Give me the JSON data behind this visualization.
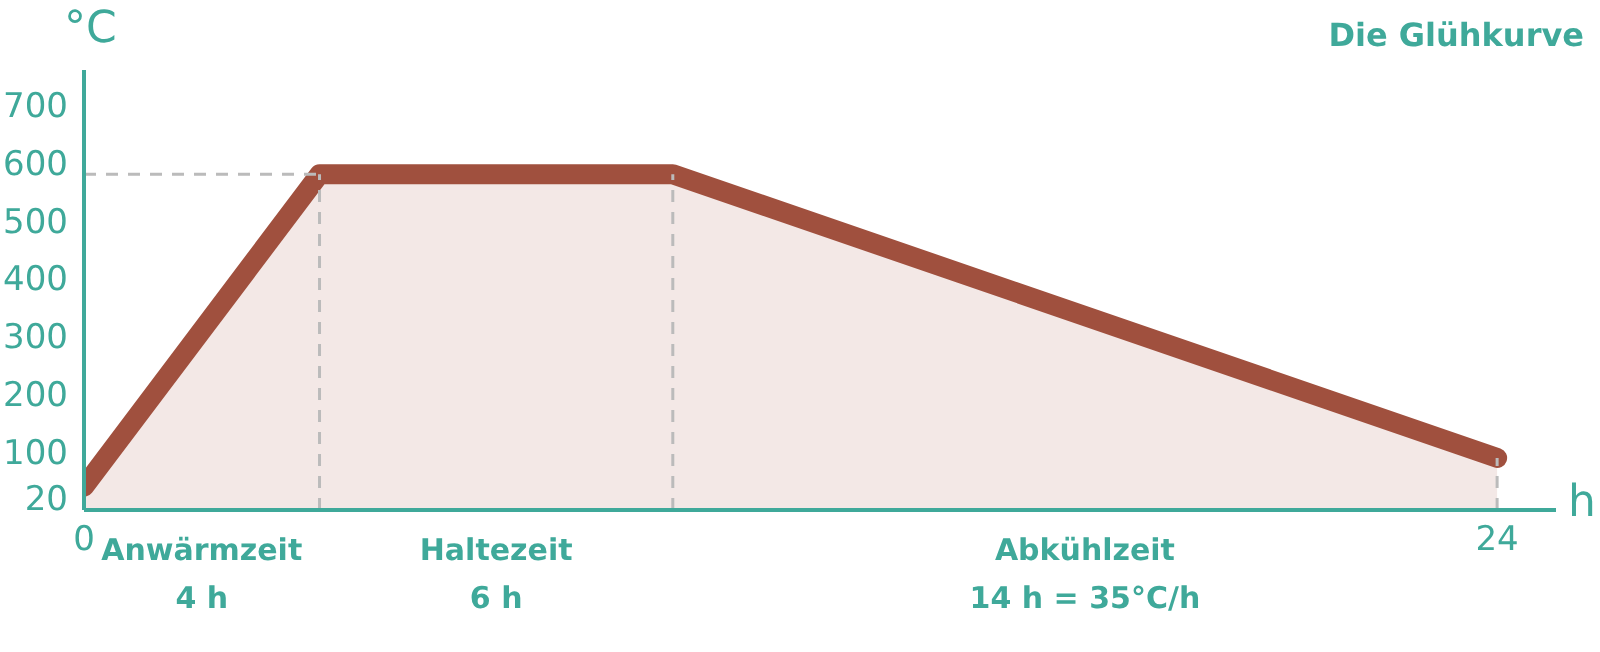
{
  "chart_data": {
    "type": "area",
    "title": "Die Glühkurve",
    "xlabel": "h",
    "ylabel": "°C",
    "x": [
      0,
      4,
      10,
      24
    ],
    "series": [
      {
        "color": "#a0503e",
        "values": [
          40,
          580,
          580,
          90
        ]
      }
    ],
    "xlim": [
      0,
      25
    ],
    "xticks": [
      0,
      24
    ],
    "ylim": [
      0,
      760
    ],
    "yticks": [
      20,
      100,
      200,
      300,
      400,
      500,
      600,
      700
    ],
    "grid": false,
    "legend": false,
    "marker": "none",
    "line_style": "solid",
    "ref_lines": [
      {
        "axis": "y",
        "value": 580,
        "color": "#bbbbbb",
        "line_style": "dashed"
      },
      {
        "axis": "x",
        "value": 4,
        "color": "#bbbbbb",
        "line_style": "dashed"
      },
      {
        "axis": "x",
        "value": 10,
        "color": "#bbbbbb",
        "line_style": "dashed"
      },
      {
        "axis": "x",
        "value": 24,
        "color": "#bbbbbb",
        "line_style": "dashed"
      }
    ],
    "annotations": [
      "Anwärmzeit\n4 h",
      "Haltezeit\n6 h",
      "Abkühlzeit\n14 h = 35°C/h"
    ]
  }
}
